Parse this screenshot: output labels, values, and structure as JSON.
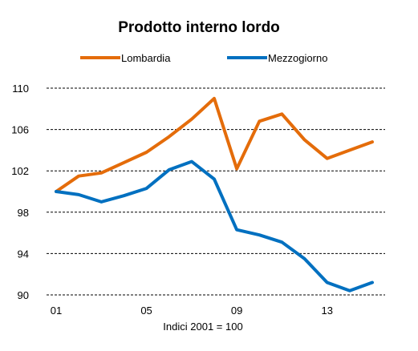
{
  "chart_data": {
    "type": "line",
    "title": "Prodotto interno lordo",
    "note": "Indici 2001 = 100",
    "x": [
      "01",
      "02",
      "03",
      "04",
      "05",
      "06",
      "07",
      "08",
      "09",
      "10",
      "11",
      "12",
      "13",
      "14",
      "15"
    ],
    "x_tick_labels": [
      "01",
      "05",
      "09",
      "13"
    ],
    "y_ticks": [
      90,
      94,
      98,
      102,
      106,
      110
    ],
    "y_tick_labels": [
      "90",
      "94",
      "98",
      "102",
      "106",
      "110"
    ],
    "ylim": [
      90,
      110
    ],
    "grid": true,
    "legend_position": "top",
    "series": [
      {
        "name": "Lombardia",
        "color": "#E46C0A",
        "values": [
          100.0,
          101.5,
          101.8,
          102.8,
          103.8,
          105.3,
          107.0,
          109.0,
          102.2,
          106.8,
          107.5,
          105.0,
          103.2,
          104.0,
          104.8
        ]
      },
      {
        "name": "Mezzogiorno",
        "color": "#0070C0",
        "values": [
          100.0,
          99.7,
          99.0,
          99.6,
          100.3,
          102.1,
          102.9,
          101.2,
          96.3,
          95.8,
          95.1,
          93.5,
          91.2,
          90.4,
          91.2
        ]
      }
    ]
  }
}
